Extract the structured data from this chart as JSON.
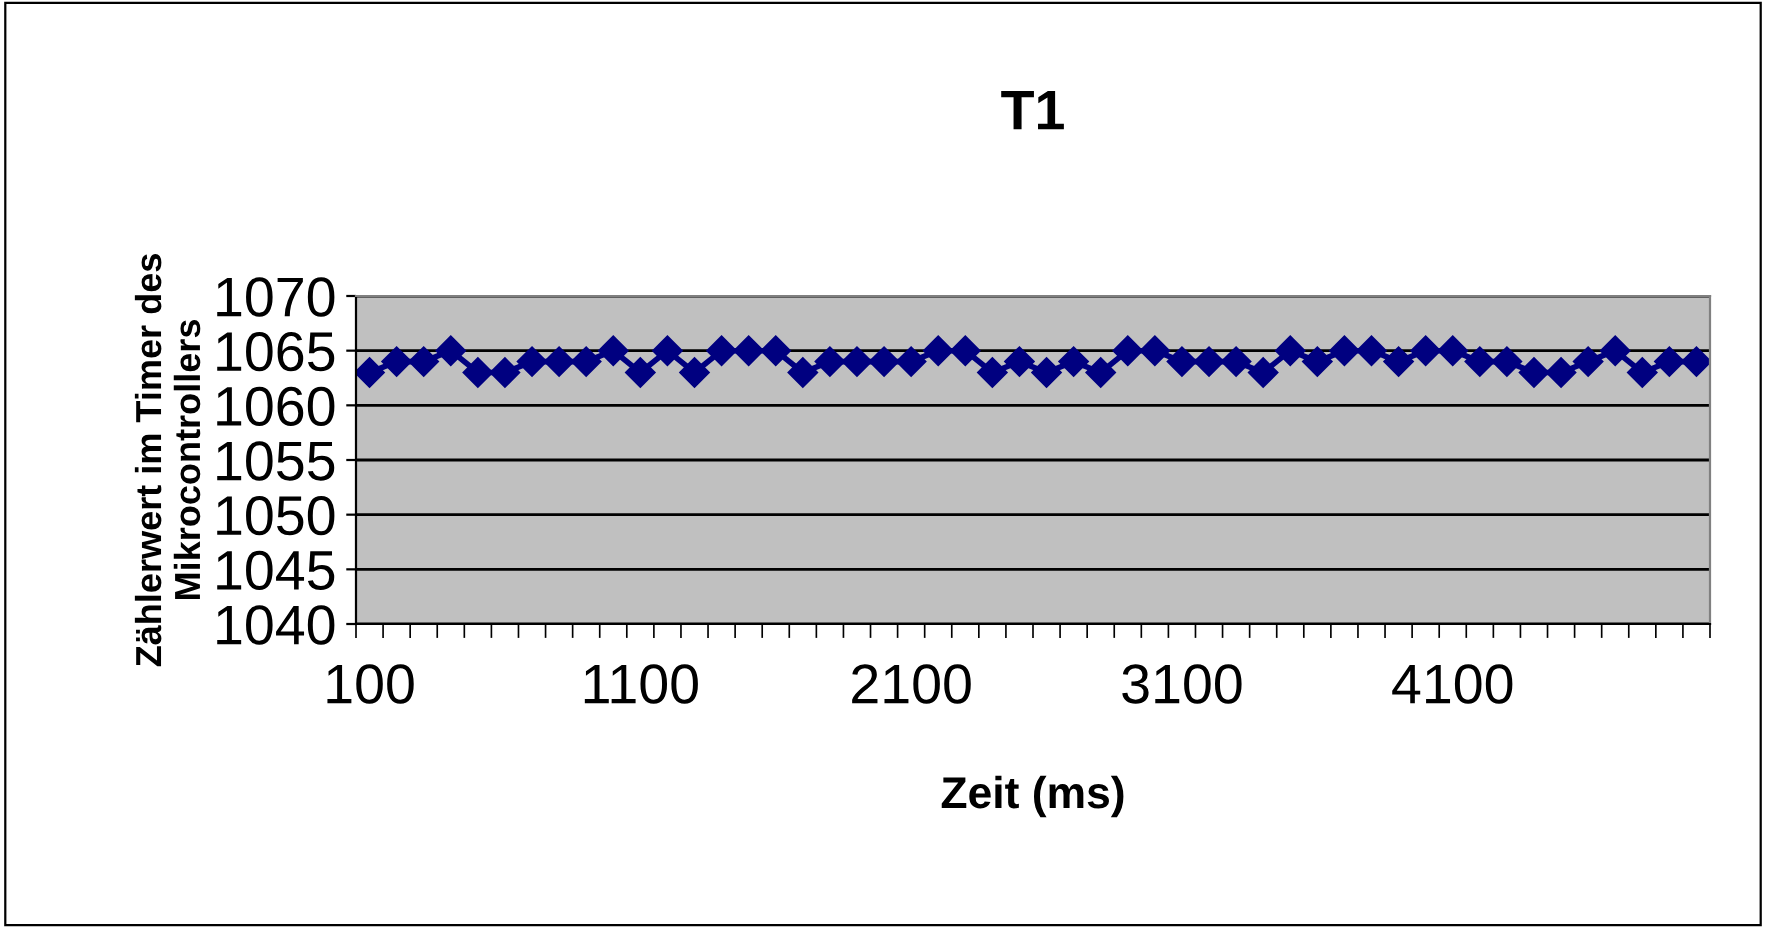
{
  "chart_data": {
    "type": "line",
    "title": "T1",
    "xlabel": "Zeit (ms)",
    "ylabel": "Zählerwert im Timer des\nMikrocontrollers",
    "categories": [
      "100",
      null,
      null,
      null,
      null,
      null,
      null,
      null,
      null,
      null,
      "1100",
      null,
      null,
      null,
      null,
      null,
      null,
      null,
      null,
      null,
      "2100",
      null,
      null,
      null,
      null,
      null,
      null,
      null,
      null,
      null,
      "3100",
      null,
      null,
      null,
      null,
      null,
      null,
      null,
      null,
      null,
      "4100",
      null,
      null,
      null,
      null,
      null,
      null,
      null,
      null,
      null
    ],
    "series": [
      {
        "color": "#000080",
        "values": [
          1063,
          1064,
          1064,
          1065,
          1063,
          1063,
          1064,
          1064,
          1064,
          1065,
          1063,
          1065,
          1063,
          1065,
          1065,
          1065,
          1063,
          1064,
          1064,
          1064,
          1064,
          1065,
          1065,
          1063,
          1064,
          1063,
          1064,
          1063,
          1065,
          1065,
          1064,
          1064,
          1064,
          1063,
          1065,
          1064,
          1065,
          1065,
          1064,
          1065,
          1065,
          1064,
          1064,
          1063,
          1063,
          1064,
          1065,
          1063,
          1064,
          1064
        ]
      }
    ],
    "ylim": [
      1040,
      1070
    ],
    "yticks": [
      1040,
      1045,
      1050,
      1055,
      1060,
      1065,
      1070
    ],
    "grid": "y",
    "marker": "diamond",
    "line_style": "solid",
    "legend": false
  }
}
